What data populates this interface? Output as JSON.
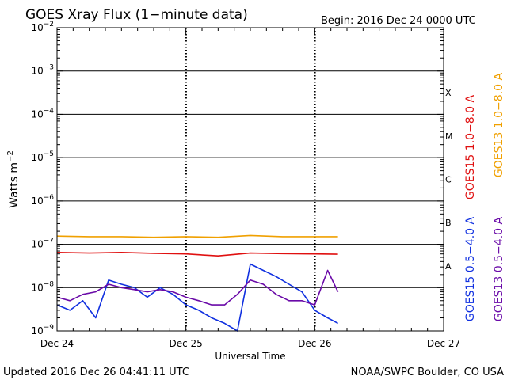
{
  "title": "GOES Xray Flux (1−minute data)",
  "begin_label": "Begin:  2016 Dec 24 0000 UTC",
  "updated_label": "Updated 2016 Dec 26 04:41:11 UTC",
  "credit_label": "NOAA/SWPC Boulder, CO USA",
  "chart_data": {
    "type": "line",
    "title": "GOES Xray Flux (1−minute data)",
    "xlabel": "Universal Time",
    "ylabel": "Watts m",
    "ylabel_superscript": "−2",
    "yscale": "log",
    "ylim": [
      1e-09,
      0.01
    ],
    "xlim_days": [
      0,
      3
    ],
    "x_ticks": [
      "Dec 24",
      "Dec 25",
      "Dec 26",
      "Dec 27"
    ],
    "y_ticks": [
      {
        "value": 1e-09,
        "base": "10",
        "exp": "−9"
      },
      {
        "value": 1e-08,
        "base": "10",
        "exp": "−8"
      },
      {
        "value": 1e-07,
        "base": "10",
        "exp": "−7"
      },
      {
        "value": 1e-06,
        "base": "10",
        "exp": "−6"
      },
      {
        "value": 1e-05,
        "base": "10",
        "exp": "−5"
      },
      {
        "value": 0.0001,
        "base": "10",
        "exp": "−4"
      },
      {
        "value": 0.001,
        "base": "10",
        "exp": "−3"
      },
      {
        "value": 0.01,
        "base": "10",
        "exp": "−2"
      }
    ],
    "flare_classes": [
      {
        "label": "A",
        "value": 1e-08
      },
      {
        "label": "B",
        "value": 1e-07
      },
      {
        "label": "C",
        "value": 1e-06
      },
      {
        "label": "M",
        "value": 1e-05
      },
      {
        "label": "X",
        "value": 0.0001
      }
    ],
    "grid": true,
    "legend_position": "right",
    "series": [
      {
        "name": "GOES13 1.0−8.0 A",
        "color": "#f0a000",
        "x": [
          0.0,
          0.25,
          0.5,
          0.75,
          1.0,
          1.25,
          1.5,
          1.75,
          2.0,
          2.18
        ],
        "y": [
          1.55e-07,
          1.5e-07,
          1.5e-07,
          1.45e-07,
          1.5e-07,
          1.45e-07,
          1.6e-07,
          1.5e-07,
          1.5e-07,
          1.5e-07
        ]
      },
      {
        "name": "GOES15 1.0−8.0 A",
        "color": "#e01010",
        "x": [
          0.0,
          0.25,
          0.5,
          0.75,
          1.0,
          1.25,
          1.5,
          1.75,
          2.0,
          2.18
        ],
        "y": [
          6.5e-08,
          6.3e-08,
          6.5e-08,
          6.2e-08,
          6e-08,
          5.4e-08,
          6.3e-08,
          6.1e-08,
          6e-08,
          5.9e-08
        ]
      },
      {
        "name": "GOES15 0.5−4.0 A",
        "color": "#1030e0",
        "x": [
          0.0,
          0.1,
          0.2,
          0.3,
          0.4,
          0.5,
          0.6,
          0.7,
          0.8,
          0.9,
          1.0,
          1.1,
          1.2,
          1.3,
          1.4,
          1.5,
          1.6,
          1.7,
          1.8,
          1.9,
          2.0,
          2.1,
          2.18
        ],
        "y": [
          4e-09,
          3e-09,
          5e-09,
          2e-09,
          1.5e-08,
          1.2e-08,
          1e-08,
          6e-09,
          1e-08,
          7e-09,
          4e-09,
          3e-09,
          2e-09,
          1.5e-09,
          1e-09,
          3.5e-08,
          2.5e-08,
          1.8e-08,
          1.2e-08,
          8e-09,
          3e-09,
          2e-09,
          1.5e-09
        ]
      },
      {
        "name": "GOES13 0.5−4.0 A",
        "color": "#6a0aa8",
        "x": [
          0.0,
          0.1,
          0.2,
          0.3,
          0.4,
          0.5,
          0.6,
          0.7,
          0.8,
          0.9,
          1.0,
          1.1,
          1.2,
          1.3,
          1.4,
          1.5,
          1.6,
          1.7,
          1.8,
          1.9,
          2.0,
          2.1,
          2.18
        ],
        "y": [
          6e-09,
          5e-09,
          7e-09,
          8e-09,
          1.2e-08,
          1e-08,
          9e-09,
          8e-09,
          9e-09,
          8e-09,
          6e-09,
          5e-09,
          4e-09,
          4e-09,
          7e-09,
          1.5e-08,
          1.2e-08,
          7e-09,
          5e-09,
          5e-09,
          4e-09,
          2.5e-08,
          8e-09
        ]
      }
    ]
  }
}
